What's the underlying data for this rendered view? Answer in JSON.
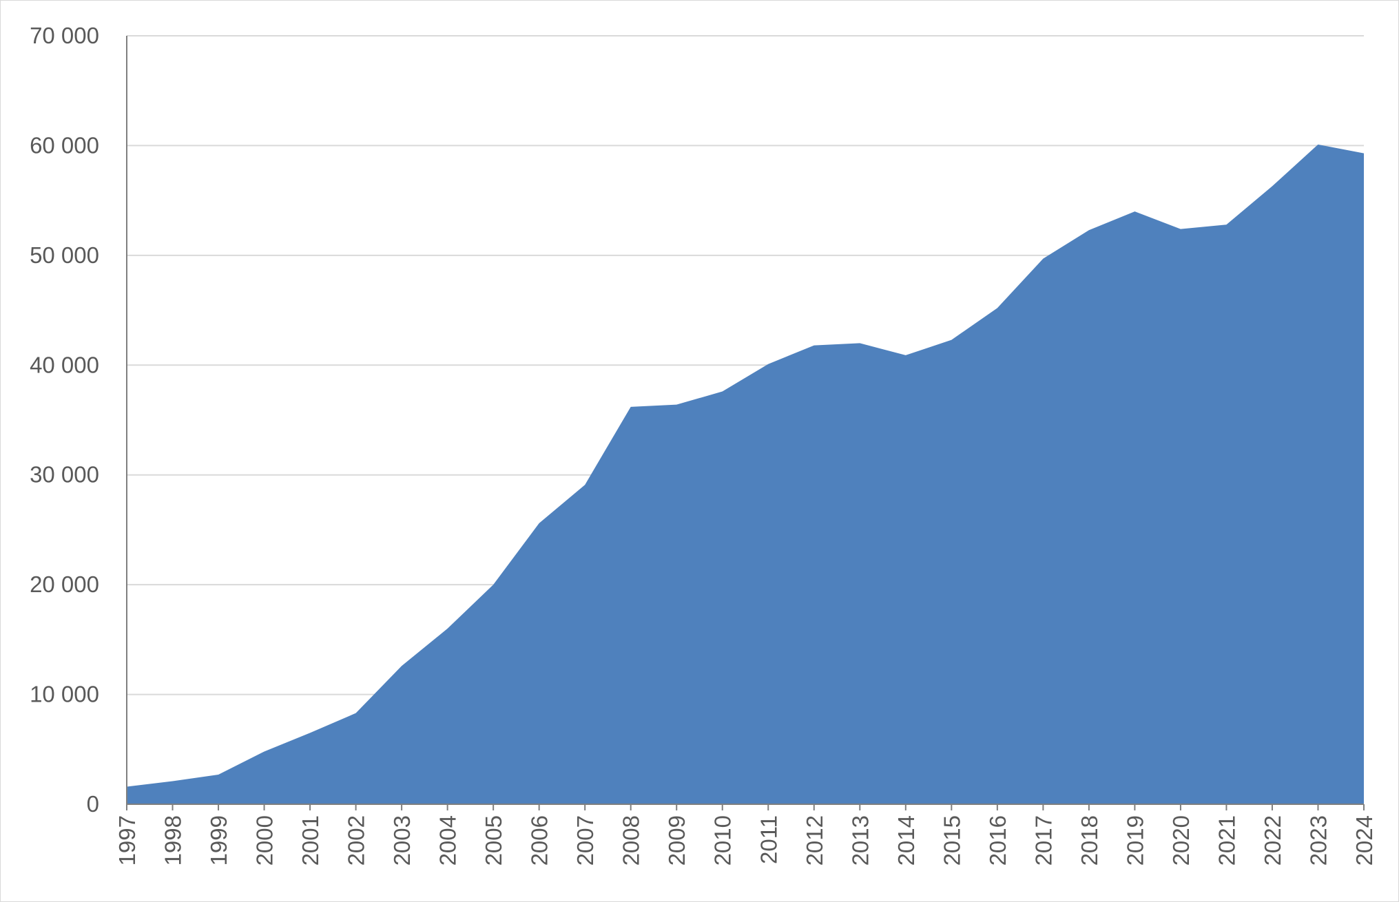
{
  "chart_data": {
    "type": "area",
    "title": "",
    "xlabel": "",
    "ylabel": "",
    "x": [
      "1997",
      "1998",
      "1999",
      "2000",
      "2001",
      "2002",
      "2003",
      "2004",
      "2005",
      "2006",
      "2007",
      "2008",
      "2009",
      "2010",
      "2011",
      "2012",
      "2013",
      "2014",
      "2015",
      "2016",
      "2017",
      "2018",
      "2019",
      "2020",
      "2021",
      "2022",
      "2023",
      "2024"
    ],
    "series": [
      {
        "name": "",
        "color": "#4f81bd",
        "values": [
          1600,
          2100,
          2700,
          4800,
          6500,
          8300,
          12600,
          16000,
          20000,
          25600,
          29100,
          36200,
          36400,
          37600,
          40100,
          41800,
          42000,
          40900,
          42300,
          45200,
          49700,
          52300,
          54000,
          52400,
          52800,
          56300,
          60100,
          59300
        ]
      }
    ],
    "ylim": [
      0,
      70000
    ],
    "yticks": [
      0,
      10000,
      20000,
      30000,
      40000,
      50000,
      60000,
      70000
    ],
    "ytick_labels": [
      "0",
      "10 000",
      "20 000",
      "30 000",
      "40 000",
      "50 000",
      "60 000",
      "70 000"
    ],
    "grid": true,
    "legend": "none"
  }
}
